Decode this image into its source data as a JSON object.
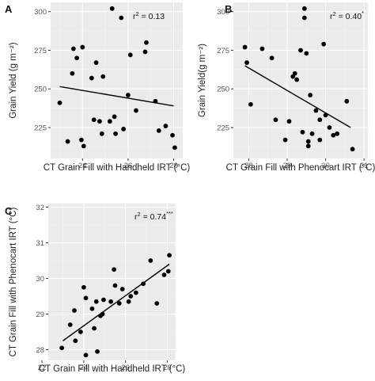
{
  "chart_data": [
    {
      "type": "scatter",
      "panel_label": "A",
      "annotation": {
        "base": "r",
        "sup": "2",
        "rest": " = 0.13",
        "stars": ""
      },
      "xlabel": "CT Grain Fill with Handheld IRT (°C)",
      "ylabel": "Grain Yield (g m⁻²)",
      "xlim": [
        22.6,
        28.4
      ],
      "ylim": [
        205,
        306
      ],
      "xticks": [
        24,
        26,
        28
      ],
      "yticks": [
        225,
        250,
        275,
        300
      ],
      "fit": {
        "x": [
          23.0,
          28.0
        ],
        "y": [
          251.5,
          239
        ]
      },
      "points": [
        {
          "x": 23.0,
          "y": 241
        },
        {
          "x": 23.35,
          "y": 216
        },
        {
          "x": 23.55,
          "y": 260
        },
        {
          "x": 23.6,
          "y": 276
        },
        {
          "x": 23.75,
          "y": 270
        },
        {
          "x": 23.95,
          "y": 217
        },
        {
          "x": 24.0,
          "y": 277
        },
        {
          "x": 24.05,
          "y": 213
        },
        {
          "x": 24.4,
          "y": 257
        },
        {
          "x": 24.5,
          "y": 230
        },
        {
          "x": 24.6,
          "y": 267
        },
        {
          "x": 24.75,
          "y": 229
        },
        {
          "x": 24.85,
          "y": 221
        },
        {
          "x": 24.9,
          "y": 258
        },
        {
          "x": 25.2,
          "y": 229
        },
        {
          "x": 25.3,
          "y": 302
        },
        {
          "x": 25.4,
          "y": 232
        },
        {
          "x": 25.45,
          "y": 221
        },
        {
          "x": 25.7,
          "y": 296
        },
        {
          "x": 25.8,
          "y": 224
        },
        {
          "x": 26.0,
          "y": 246
        },
        {
          "x": 26.1,
          "y": 272
        },
        {
          "x": 26.35,
          "y": 236
        },
        {
          "x": 26.75,
          "y": 274
        },
        {
          "x": 26.8,
          "y": 280
        },
        {
          "x": 27.2,
          "y": 242
        },
        {
          "x": 27.35,
          "y": 223
        },
        {
          "x": 27.65,
          "y": 226
        },
        {
          "x": 27.95,
          "y": 220
        },
        {
          "x": 28.05,
          "y": 212
        }
      ]
    },
    {
      "type": "scatter",
      "panel_label": "B",
      "annotation": {
        "base": "r",
        "sup": "2",
        "rest": " = 0.40",
        "stars": "*"
      },
      "xlabel": "CT Grain Fill with Phenocart IRT (°C)",
      "ylabel": "Grain Yield(g m⁻²)",
      "xlim": [
        27.6,
        31.1
      ],
      "ylim": [
        205,
        306
      ],
      "xticks": [
        28,
        29,
        30,
        31
      ],
      "yticks": [
        225,
        250,
        275,
        300
      ],
      "fit": {
        "x": [
          27.9,
          30.65
        ],
        "y": [
          265,
          225
        ]
      },
      "points": [
        {
          "x": 27.9,
          "y": 277
        },
        {
          "x": 27.95,
          "y": 267
        },
        {
          "x": 28.05,
          "y": 240
        },
        {
          "x": 28.35,
          "y": 276
        },
        {
          "x": 28.6,
          "y": 270
        },
        {
          "x": 28.7,
          "y": 230
        },
        {
          "x": 28.95,
          "y": 217
        },
        {
          "x": 29.05,
          "y": 229
        },
        {
          "x": 29.15,
          "y": 258
        },
        {
          "x": 29.2,
          "y": 260
        },
        {
          "x": 29.25,
          "y": 256
        },
        {
          "x": 29.35,
          "y": 275
        },
        {
          "x": 29.4,
          "y": 222
        },
        {
          "x": 29.45,
          "y": 302
        },
        {
          "x": 29.45,
          "y": 296
        },
        {
          "x": 29.5,
          "y": 273
        },
        {
          "x": 29.55,
          "y": 213
        },
        {
          "x": 29.55,
          "y": 216
        },
        {
          "x": 29.6,
          "y": 246
        },
        {
          "x": 29.65,
          "y": 221
        },
        {
          "x": 29.75,
          "y": 236
        },
        {
          "x": 29.85,
          "y": 230
        },
        {
          "x": 29.85,
          "y": 217
        },
        {
          "x": 29.95,
          "y": 279
        },
        {
          "x": 30.0,
          "y": 233
        },
        {
          "x": 30.1,
          "y": 225
        },
        {
          "x": 30.2,
          "y": 220
        },
        {
          "x": 30.3,
          "y": 221
        },
        {
          "x": 30.55,
          "y": 242
        },
        {
          "x": 30.7,
          "y": 211
        }
      ]
    },
    {
      "type": "scatter",
      "panel_label": "C",
      "annotation": {
        "base": "r",
        "sup": "2",
        "rest": " = 0.74",
        "stars": "***"
      },
      "xlabel": "CT Grain Fill with Handheld IRT (°C)",
      "ylabel": "CT Grain Fill with Phenocart IRT (°C)",
      "xlim": [
        22.3,
        28.4
      ],
      "ylim": [
        27.7,
        32.1
      ],
      "xticks": [
        22,
        24,
        26,
        28
      ],
      "yticks": [
        28,
        29,
        30,
        31,
        32
      ],
      "fit": {
        "x": [
          23.0,
          28.1
        ],
        "y": [
          28.25,
          30.4
        ]
      },
      "points": [
        {
          "x": 22.95,
          "y": 28.05
        },
        {
          "x": 23.35,
          "y": 28.7
        },
        {
          "x": 23.55,
          "y": 29.1
        },
        {
          "x": 23.6,
          "y": 28.25
        },
        {
          "x": 23.85,
          "y": 28.5
        },
        {
          "x": 24.0,
          "y": 29.75
        },
        {
          "x": 24.1,
          "y": 29.45
        },
        {
          "x": 24.1,
          "y": 27.85
        },
        {
          "x": 24.4,
          "y": 29.15
        },
        {
          "x": 24.5,
          "y": 28.6
        },
        {
          "x": 24.6,
          "y": 29.35
        },
        {
          "x": 24.65,
          "y": 27.95
        },
        {
          "x": 24.8,
          "y": 28.95
        },
        {
          "x": 24.9,
          "y": 29.0
        },
        {
          "x": 24.95,
          "y": 29.4
        },
        {
          "x": 25.3,
          "y": 29.35
        },
        {
          "x": 25.45,
          "y": 30.25
        },
        {
          "x": 25.5,
          "y": 29.8
        },
        {
          "x": 25.7,
          "y": 29.3
        },
        {
          "x": 25.85,
          "y": 29.7
        },
        {
          "x": 26.15,
          "y": 29.35
        },
        {
          "x": 26.25,
          "y": 29.5
        },
        {
          "x": 26.5,
          "y": 29.6
        },
        {
          "x": 26.85,
          "y": 29.85
        },
        {
          "x": 27.2,
          "y": 30.5
        },
        {
          "x": 27.5,
          "y": 29.3
        },
        {
          "x": 27.85,
          "y": 30.1
        },
        {
          "x": 28.05,
          "y": 30.2
        },
        {
          "x": 28.1,
          "y": 30.65
        }
      ]
    }
  ]
}
